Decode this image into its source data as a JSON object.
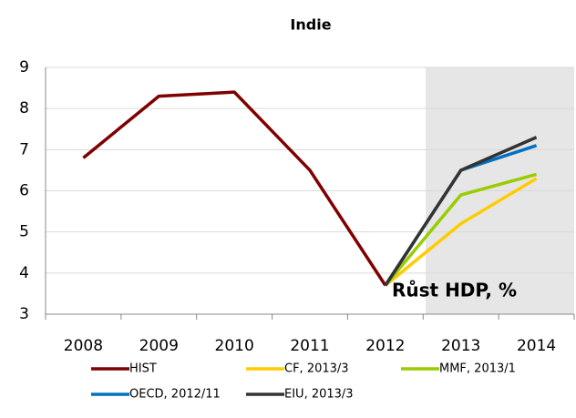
{
  "chart_data": {
    "type": "line",
    "title": "Indie",
    "annotation": "Růst HDP, %",
    "categories": [
      "2008",
      "2009",
      "2010",
      "2011",
      "2012",
      "2013",
      "2014"
    ],
    "series": [
      {
        "name": "HIST",
        "color": "#7f0000",
        "values": [
          6.8,
          8.3,
          8.4,
          6.5,
          3.7,
          null,
          null
        ]
      },
      {
        "name": "CF, 2013/3",
        "color": "#ffcc00",
        "values": [
          null,
          null,
          null,
          null,
          3.7,
          5.2,
          6.3
        ]
      },
      {
        "name": "MMF, 2013/1",
        "color": "#99cc00",
        "values": [
          null,
          null,
          null,
          null,
          3.7,
          5.9,
          6.4
        ]
      },
      {
        "name": "OECD, 2012/11",
        "color": "#0070c0",
        "values": [
          null,
          null,
          null,
          null,
          3.7,
          6.5,
          7.1
        ]
      },
      {
        "name": "EIU, 2013/3",
        "color": "#333333",
        "values": [
          null,
          null,
          null,
          null,
          3.7,
          6.5,
          7.3
        ]
      }
    ],
    "ylim": [
      3,
      9
    ],
    "yticks": [
      3,
      4,
      5,
      6,
      7,
      8,
      9
    ],
    "grid": true
  }
}
